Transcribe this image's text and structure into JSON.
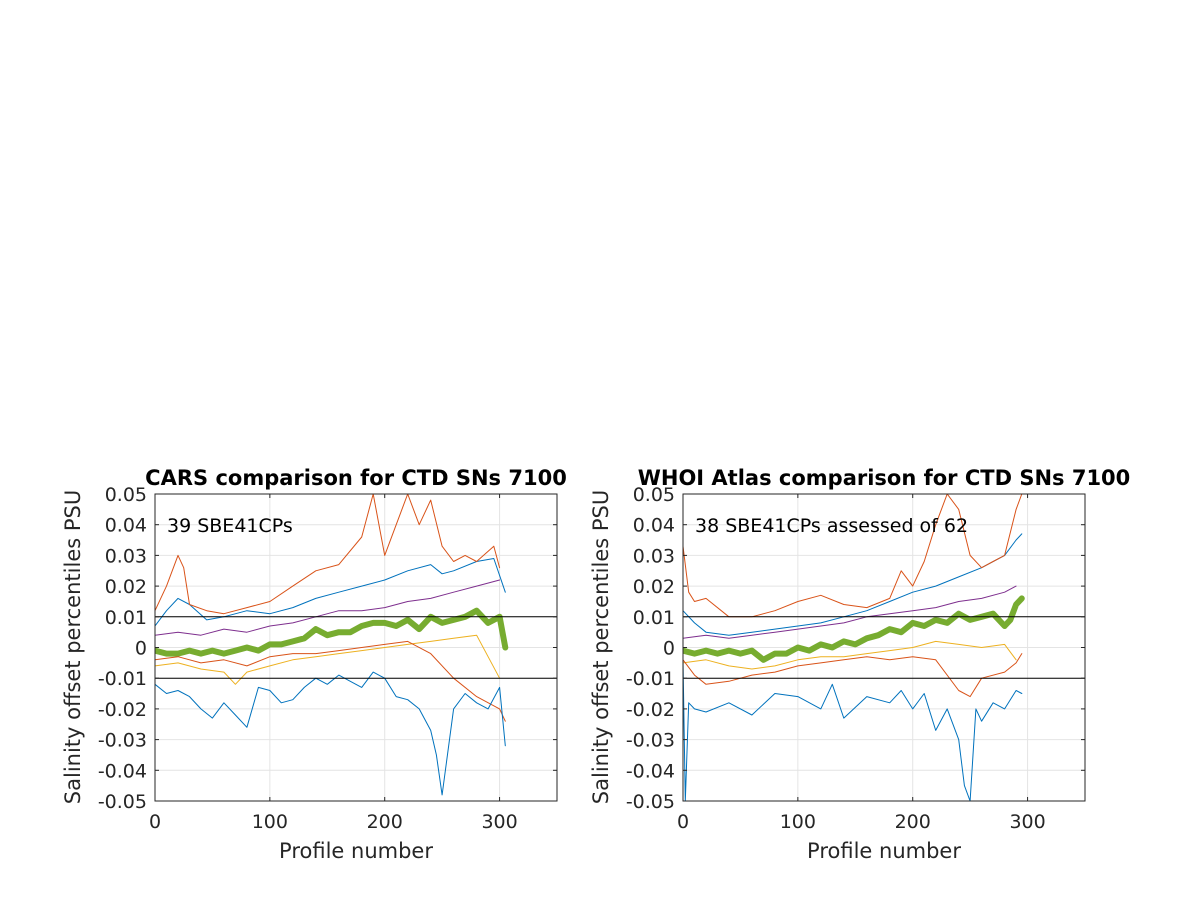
{
  "chart_data": [
    {
      "type": "line",
      "title": "CARS comparison for CTD SNs 7100",
      "xlabel": "Profile number",
      "ylabel": "Salinity offset percentiles PSU",
      "annotation": "39 SBE41CPs",
      "xlim": [
        0,
        350
      ],
      "ylim": [
        -0.05,
        0.05
      ],
      "xticks": [
        "0",
        "100",
        "200",
        "300"
      ],
      "yticks": [
        "-0.05",
        "-0.04",
        "-0.03",
        "-0.02",
        "-0.01",
        "0",
        "0.01",
        "0.02",
        "0.03",
        "0.04",
        "0.05"
      ],
      "grid": true,
      "reference_lines": [
        -0.01,
        0.01
      ],
      "series": [
        {
          "color": "#0072BD",
          "x": [
            0,
            10,
            20,
            30,
            45,
            60,
            80,
            100,
            120,
            140,
            160,
            180,
            200,
            220,
            240,
            250,
            260,
            280,
            295,
            305
          ],
          "y": [
            0.007,
            0.012,
            0.016,
            0.014,
            0.009,
            0.01,
            0.012,
            0.011,
            0.013,
            0.016,
            0.018,
            0.02,
            0.022,
            0.025,
            0.027,
            0.024,
            0.025,
            0.028,
            0.029,
            0.018
          ]
        },
        {
          "color": "#D95319",
          "x": [
            0,
            10,
            20,
            25,
            30,
            45,
            60,
            80,
            100,
            120,
            140,
            160,
            180,
            190,
            200,
            210,
            220,
            230,
            240,
            250,
            260,
            270,
            280,
            295,
            300
          ],
          "y": [
            0.012,
            0.02,
            0.03,
            0.026,
            0.014,
            0.012,
            0.011,
            0.013,
            0.015,
            0.02,
            0.025,
            0.027,
            0.036,
            0.05,
            0.03,
            0.04,
            0.05,
            0.04,
            0.048,
            0.033,
            0.028,
            0.03,
            0.028,
            0.033,
            0.026
          ]
        },
        {
          "color": "#7E2F8E",
          "x": [
            0,
            20,
            40,
            60,
            80,
            100,
            120,
            140,
            160,
            180,
            200,
            220,
            240,
            260,
            280,
            300
          ],
          "y": [
            0.004,
            0.005,
            0.004,
            0.006,
            0.005,
            0.007,
            0.008,
            0.01,
            0.012,
            0.012,
            0.013,
            0.015,
            0.016,
            0.018,
            0.02,
            0.022
          ]
        },
        {
          "color": "#77AC30",
          "width": 6,
          "x": [
            0,
            10,
            20,
            30,
            40,
            50,
            60,
            70,
            80,
            90,
            100,
            110,
            120,
            130,
            140,
            150,
            160,
            170,
            180,
            190,
            200,
            210,
            220,
            230,
            240,
            250,
            260,
            270,
            280,
            290,
            300,
            305
          ],
          "y": [
            -0.001,
            -0.002,
            -0.002,
            -0.001,
            -0.002,
            -0.001,
            -0.002,
            -0.001,
            0.0,
            -0.001,
            0.001,
            0.001,
            0.002,
            0.003,
            0.006,
            0.004,
            0.005,
            0.005,
            0.007,
            0.008,
            0.008,
            0.007,
            0.009,
            0.006,
            0.01,
            0.008,
            0.009,
            0.01,
            0.012,
            0.008,
            0.01,
            0.0
          ]
        },
        {
          "color": "#EDB120",
          "x": [
            0,
            20,
            40,
            60,
            70,
            80,
            100,
            120,
            140,
            160,
            180,
            200,
            220,
            240,
            260,
            280,
            300
          ],
          "y": [
            -0.006,
            -0.005,
            -0.007,
            -0.008,
            -0.012,
            -0.008,
            -0.006,
            -0.004,
            -0.003,
            -0.002,
            -0.001,
            0.0,
            0.001,
            0.002,
            0.003,
            0.004,
            -0.01
          ]
        },
        {
          "color": "#D95319",
          "x": [
            0,
            20,
            40,
            60,
            80,
            100,
            120,
            140,
            160,
            180,
            200,
            220,
            240,
            260,
            280,
            300,
            305
          ],
          "y": [
            -0.004,
            -0.003,
            -0.005,
            -0.004,
            -0.006,
            -0.003,
            -0.002,
            -0.002,
            -0.001,
            0.0,
            0.001,
            0.002,
            -0.002,
            -0.01,
            -0.016,
            -0.02,
            -0.024
          ]
        },
        {
          "color": "#0072BD",
          "x": [
            0,
            10,
            20,
            30,
            40,
            50,
            60,
            70,
            80,
            90,
            100,
            110,
            120,
            130,
            140,
            150,
            160,
            170,
            180,
            190,
            200,
            210,
            220,
            230,
            240,
            245,
            250,
            260,
            270,
            280,
            290,
            300,
            305
          ],
          "y": [
            -0.012,
            -0.015,
            -0.014,
            -0.016,
            -0.02,
            -0.023,
            -0.018,
            -0.022,
            -0.026,
            -0.013,
            -0.014,
            -0.018,
            -0.017,
            -0.013,
            -0.01,
            -0.012,
            -0.009,
            -0.011,
            -0.013,
            -0.008,
            -0.01,
            -0.016,
            -0.017,
            -0.02,
            -0.027,
            -0.035,
            -0.048,
            -0.02,
            -0.015,
            -0.018,
            -0.02,
            -0.013,
            -0.032
          ]
        }
      ]
    },
    {
      "type": "line",
      "title": "WHOI Atlas comparison for CTD SNs 7100",
      "xlabel": "Profile number",
      "ylabel": "Salinity offset percentiles PSU",
      "annotation": "38 SBE41CPs assessed of 62",
      "xlim": [
        0,
        350
      ],
      "ylim": [
        -0.05,
        0.05
      ],
      "xticks": [
        "0",
        "100",
        "200",
        "300"
      ],
      "yticks": [
        "-0.05",
        "-0.04",
        "-0.03",
        "-0.02",
        "-0.01",
        "0",
        "0.01",
        "0.02",
        "0.03",
        "0.04",
        "0.05"
      ],
      "grid": true,
      "reference_lines": [
        -0.01,
        0.01
      ],
      "series": [
        {
          "color": "#0072BD",
          "x": [
            0,
            10,
            20,
            40,
            60,
            80,
            100,
            120,
            140,
            160,
            180,
            200,
            220,
            240,
            260,
            280,
            290,
            295
          ],
          "y": [
            0.012,
            0.008,
            0.005,
            0.004,
            0.005,
            0.006,
            0.007,
            0.008,
            0.01,
            0.012,
            0.015,
            0.018,
            0.02,
            0.023,
            0.026,
            0.03,
            0.035,
            0.037
          ]
        },
        {
          "color": "#D95319",
          "x": [
            0,
            5,
            10,
            20,
            40,
            60,
            80,
            100,
            120,
            140,
            160,
            180,
            190,
            200,
            210,
            220,
            230,
            240,
            250,
            260,
            270,
            280,
            290,
            295
          ],
          "y": [
            0.033,
            0.018,
            0.015,
            0.016,
            0.01,
            0.01,
            0.012,
            0.015,
            0.017,
            0.014,
            0.013,
            0.016,
            0.025,
            0.02,
            0.028,
            0.04,
            0.05,
            0.045,
            0.03,
            0.026,
            0.028,
            0.03,
            0.045,
            0.05
          ]
        },
        {
          "color": "#7E2F8E",
          "x": [
            0,
            20,
            40,
            60,
            80,
            100,
            120,
            140,
            160,
            180,
            200,
            220,
            240,
            260,
            280,
            290
          ],
          "y": [
            0.003,
            0.004,
            0.003,
            0.004,
            0.005,
            0.006,
            0.007,
            0.008,
            0.01,
            0.011,
            0.012,
            0.013,
            0.015,
            0.016,
            0.018,
            0.02
          ]
        },
        {
          "color": "#77AC30",
          "width": 6,
          "x": [
            0,
            10,
            20,
            30,
            40,
            50,
            60,
            70,
            80,
            90,
            100,
            110,
            120,
            130,
            140,
            150,
            160,
            170,
            180,
            190,
            200,
            210,
            220,
            230,
            240,
            250,
            260,
            270,
            280,
            285,
            290,
            295
          ],
          "y": [
            -0.001,
            -0.002,
            -0.001,
            -0.002,
            -0.001,
            -0.002,
            -0.001,
            -0.004,
            -0.002,
            -0.002,
            0.0,
            -0.001,
            0.001,
            0.0,
            0.002,
            0.001,
            0.003,
            0.004,
            0.006,
            0.005,
            0.008,
            0.007,
            0.009,
            0.008,
            0.011,
            0.009,
            0.01,
            0.011,
            0.007,
            0.009,
            0.014,
            0.016
          ]
        },
        {
          "color": "#EDB120",
          "x": [
            0,
            20,
            40,
            60,
            80,
            100,
            120,
            140,
            160,
            180,
            200,
            220,
            240,
            260,
            280,
            290
          ],
          "y": [
            -0.005,
            -0.004,
            -0.006,
            -0.007,
            -0.006,
            -0.004,
            -0.003,
            -0.003,
            -0.002,
            -0.001,
            0.0,
            0.002,
            0.001,
            0.0,
            0.001,
            -0.004
          ]
        },
        {
          "color": "#D95319",
          "x": [
            0,
            10,
            20,
            40,
            60,
            80,
            100,
            120,
            140,
            160,
            180,
            200,
            220,
            240,
            250,
            260,
            280,
            290,
            295
          ],
          "y": [
            -0.004,
            -0.009,
            -0.012,
            -0.011,
            -0.009,
            -0.008,
            -0.006,
            -0.005,
            -0.004,
            -0.003,
            -0.004,
            -0.003,
            -0.004,
            -0.014,
            -0.016,
            -0.01,
            -0.008,
            -0.005,
            -0.002
          ]
        },
        {
          "color": "#0072BD",
          "x": [
            0,
            2,
            5,
            10,
            20,
            40,
            60,
            80,
            100,
            120,
            130,
            140,
            160,
            180,
            190,
            200,
            210,
            220,
            230,
            240,
            245,
            250,
            255,
            260,
            270,
            280,
            290,
            295
          ],
          "y": [
            -0.004,
            -0.05,
            -0.018,
            -0.02,
            -0.021,
            -0.018,
            -0.022,
            -0.015,
            -0.016,
            -0.02,
            -0.012,
            -0.023,
            -0.016,
            -0.018,
            -0.014,
            -0.02,
            -0.015,
            -0.027,
            -0.02,
            -0.03,
            -0.045,
            -0.05,
            -0.02,
            -0.024,
            -0.018,
            -0.02,
            -0.014,
            -0.015
          ]
        }
      ]
    }
  ]
}
